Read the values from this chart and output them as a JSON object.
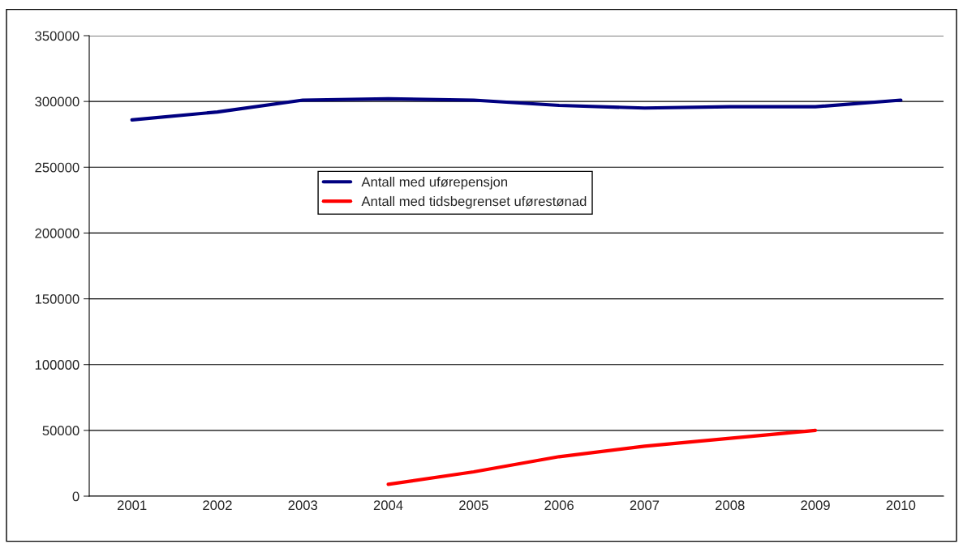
{
  "chart_data": {
    "type": "line",
    "categories": [
      "2001",
      "2002",
      "2003",
      "2004",
      "2005",
      "2006",
      "2007",
      "2008",
      "2009",
      "2010"
    ],
    "series": [
      {
        "name": "Antall med uførepensjon",
        "color": "#000080",
        "values": [
          286000,
          292000,
          301000,
          302000,
          301000,
          297000,
          295000,
          296000,
          296000,
          301000
        ]
      },
      {
        "name": "Antall med tidsbegrenset uførestønad",
        "color": "#ff0000",
        "values": [
          null,
          null,
          null,
          9000,
          18500,
          30000,
          38000,
          44000,
          50000,
          null
        ]
      }
    ],
    "ylim": [
      0,
      350000
    ],
    "yticks": [
      0,
      50000,
      100000,
      150000,
      200000,
      250000,
      300000,
      350000
    ],
    "grid": "y",
    "legend": "top"
  }
}
